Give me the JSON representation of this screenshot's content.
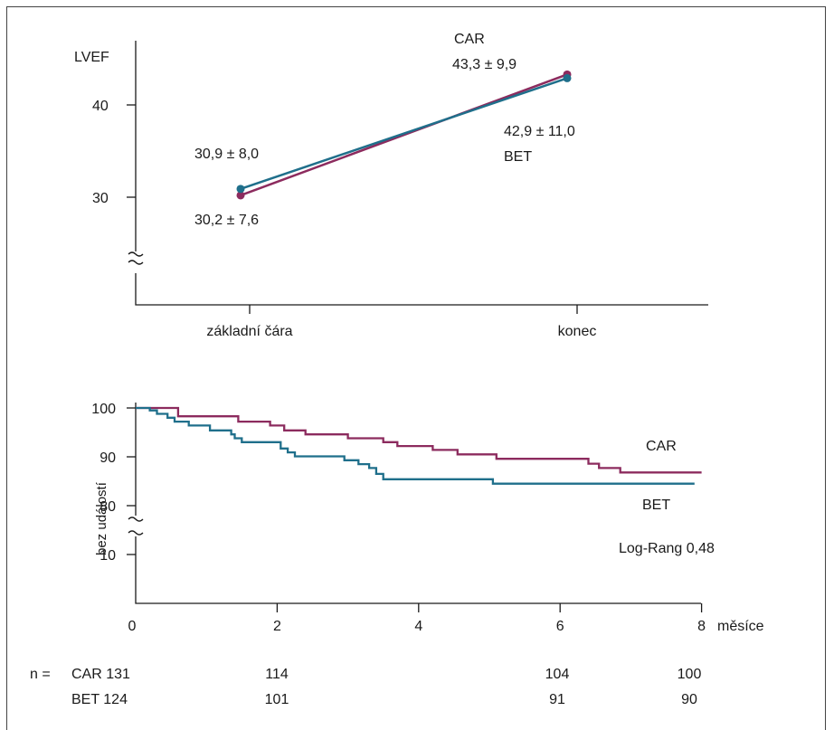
{
  "chart_data": [
    {
      "type": "line",
      "ylabel": "LVEF",
      "categories": [
        "základní čára",
        "konec"
      ],
      "ylim": [
        20,
        47
      ],
      "yticks": [
        30,
        40
      ],
      "axis_break": true,
      "series": [
        {
          "name": "CAR",
          "values": [
            30.2,
            43.3
          ],
          "color": "#8c2b5e",
          "labels": [
            "30,2 ± 7,6",
            "43,3 ± 9,9"
          ]
        },
        {
          "name": "BET",
          "values": [
            30.9,
            42.9
          ],
          "color": "#1f6f8b",
          "labels": [
            "30,9 ± 8,0",
            "42,9 ± 11,0"
          ]
        }
      ]
    },
    {
      "type": "line",
      "step": true,
      "ylabel": "bez událostí",
      "xlabel": "měsíce",
      "xlim": [
        0,
        8
      ],
      "xticks": [
        "0",
        "2",
        "4",
        "6",
        "8"
      ],
      "yticks": [
        10,
        80,
        90,
        100
      ],
      "axis_break": true,
      "annotation": "Log-Rang 0,48",
      "series": [
        {
          "name": "CAR",
          "color": "#8c2b5e",
          "x": [
            0,
            0.6,
            0.6,
            1.45,
            1.45,
            1.9,
            1.9,
            2.1,
            2.1,
            2.4,
            2.4,
            3.0,
            3.0,
            3.5,
            3.5,
            3.7,
            3.7,
            4.2,
            4.2,
            4.55,
            4.55,
            5.1,
            5.1,
            6.4,
            6.4,
            6.55,
            6.55,
            6.85,
            6.85,
            7.0,
            7.0,
            8.0
          ],
          "y": [
            100,
            100,
            98.3,
            98.3,
            97.2,
            97.2,
            96.4,
            96.4,
            95.4,
            95.4,
            94.6,
            94.6,
            93.8,
            93.8,
            93.0,
            93.0,
            92.2,
            92.2,
            91.4,
            91.4,
            90.5,
            90.5,
            89.6,
            89.6,
            88.6,
            88.6,
            87.7,
            87.7,
            86.8,
            86.8,
            86.8,
            86.8
          ]
        },
        {
          "name": "BET",
          "color": "#1f6f8b",
          "x": [
            0,
            0.2,
            0.2,
            0.3,
            0.3,
            0.45,
            0.45,
            0.55,
            0.55,
            0.75,
            0.75,
            1.05,
            1.05,
            1.35,
            1.35,
            1.4,
            1.4,
            1.5,
            1.5,
            2.05,
            2.05,
            2.15,
            2.15,
            2.25,
            2.25,
            2.95,
            2.95,
            3.15,
            3.15,
            3.3,
            3.3,
            3.4,
            3.4,
            3.5,
            3.5,
            5.05,
            5.05,
            6.0,
            6.0,
            7.9
          ],
          "y": [
            100,
            100,
            99.5,
            99.5,
            98.8,
            98.8,
            98.0,
            98.0,
            97.2,
            97.2,
            96.4,
            96.4,
            95.4,
            95.4,
            94.6,
            94.6,
            93.8,
            93.8,
            93.0,
            93.0,
            91.7,
            91.7,
            90.9,
            90.9,
            90.1,
            90.1,
            89.3,
            89.3,
            88.5,
            88.5,
            87.7,
            87.7,
            86.5,
            86.5,
            85.4,
            85.4,
            84.5,
            84.5,
            84.5,
            84.5
          ]
        }
      ],
      "at_risk": {
        "prefix": "n =",
        "rows": [
          {
            "label": "CAR 131",
            "values": [
              "114",
              "104",
              "100"
            ]
          },
          {
            "label": "BET 124",
            "values": [
              "101",
              "91",
              "90"
            ]
          }
        ]
      }
    }
  ]
}
